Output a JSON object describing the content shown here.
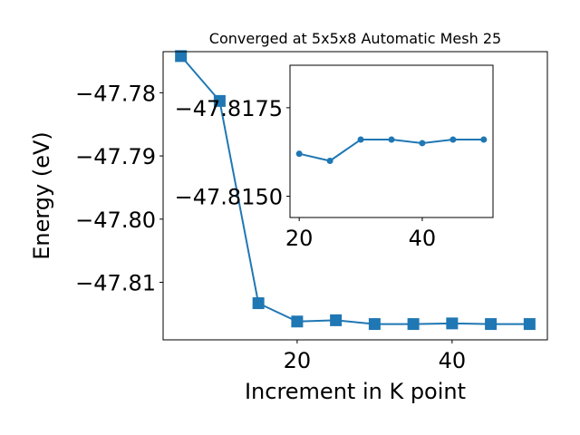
{
  "chart_data": [
    {
      "id": "main",
      "type": "line",
      "title": "Converged at 5x5x8 Automatic Mesh 25",
      "xlabel": "Increment in K point",
      "ylabel": "Energy (eV)",
      "xlim": [
        2.7,
        52.3
      ],
      "ylim": [
        -47.8191,
        -47.7735
      ],
      "xticks": [
        20,
        40
      ],
      "xtick_labels": [
        "20",
        "40"
      ],
      "yticks": [
        -47.78,
        -47.79,
        -47.8,
        -47.81
      ],
      "ytick_labels": [
        "−47.78",
        "−47.79",
        "−47.80",
        "−47.81"
      ],
      "grid": false,
      "marker": "square",
      "color": "#1f77b4",
      "series": [
        {
          "x": [
            5,
            10,
            15,
            20,
            25,
            30,
            35,
            40,
            45,
            50
          ],
          "y": [
            -47.7742,
            -47.7813,
            -47.8133,
            -47.8162,
            -47.816,
            -47.8166,
            -47.8166,
            -47.8165,
            -47.8166,
            -47.8166
          ]
        }
      ]
    },
    {
      "id": "inset",
      "type": "line",
      "title": "",
      "xlabel": "",
      "ylabel": "",
      "xlim": [
        18.5,
        51.5
      ],
      "ylim": [
        -47.8144,
        -47.8187
      ],
      "xticks": [
        20,
        40
      ],
      "xtick_labels": [
        "20",
        "40"
      ],
      "yticks": [
        -47.8175,
        -47.815
      ],
      "ytick_labels": [
        "−47.8175",
        "−47.8150"
      ],
      "grid": false,
      "marker": "circle",
      "color": "#1f77b4",
      "series": [
        {
          "x": [
            20,
            25,
            30,
            35,
            40,
            45,
            50
          ],
          "y": [
            -47.8162,
            -47.816,
            -47.8166,
            -47.8166,
            -47.8165,
            -47.8166,
            -47.8166
          ]
        }
      ]
    }
  ]
}
